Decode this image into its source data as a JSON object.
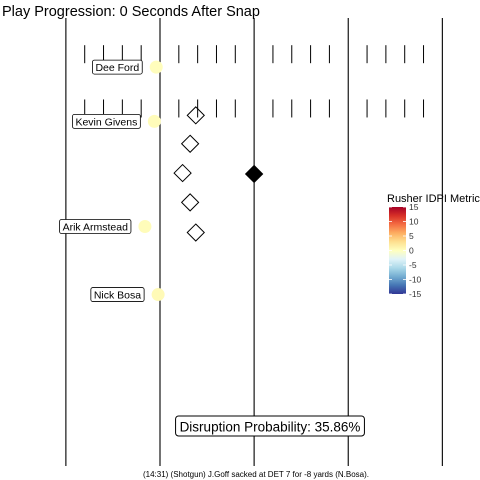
{
  "chart_data": {
    "type": "scatter",
    "title": "Play Progression: 0 Seconds After Snap",
    "caption": "(14:31) (Shotgun) J.Goff sacked at DET 7 for -8 yards (N.Bosa).",
    "annotation": "Disruption Probability: 35.86%",
    "field": {
      "yard_lines": [
        0,
        5,
        10,
        15,
        20
      ],
      "hash_rows_y": [
        39.8,
        33.5
      ],
      "hash_x_start": 1,
      "hash_x_end": 20,
      "x_range": [
        -3.5,
        22.0
      ],
      "y_range": [
        -8.0,
        44.0
      ],
      "background": "#ffffff",
      "line_color": "#000000"
    },
    "pass_rushers": [
      {
        "name": "Dee Ford",
        "x": 4.8,
        "y": 38.3,
        "idpi": 0.2
      },
      {
        "name": "Kevin Givens",
        "x": 4.7,
        "y": 32.0,
        "idpi": 0.3
      },
      {
        "name": "Arik Armstead",
        "x": 4.2,
        "y": 19.8,
        "idpi": 0.3
      },
      {
        "name": "Nick Bosa",
        "x": 4.9,
        "y": 11.9,
        "idpi": 0.5
      }
    ],
    "offense": [
      {
        "x": 6.9,
        "y": 32.7,
        "filled": false
      },
      {
        "x": 6.6,
        "y": 29.4,
        "filled": false
      },
      {
        "x": 6.2,
        "y": 26.0,
        "filled": false
      },
      {
        "x": 6.6,
        "y": 22.6,
        "filled": false
      },
      {
        "x": 6.9,
        "y": 19.1,
        "filled": false
      },
      {
        "x": 10.0,
        "y": 25.9,
        "filled": true
      }
    ],
    "legend": {
      "title": "Rusher IDPI Metric",
      "position": "right",
      "min": -15,
      "max": 15,
      "ticks": [
        15,
        10,
        5,
        0,
        -5,
        -10,
        -15
      ],
      "tick_labels": [
        "15",
        "10",
        "5",
        "0",
        "-5",
        "-10",
        "-15"
      ],
      "colors": [
        "#313695",
        "#4575b4",
        "#74add1",
        "#abd9e9",
        "#e0f3f8",
        "#ffffbf",
        "#fee090",
        "#fdae61",
        "#f46d43",
        "#d73027",
        "#a50026"
      ]
    }
  }
}
